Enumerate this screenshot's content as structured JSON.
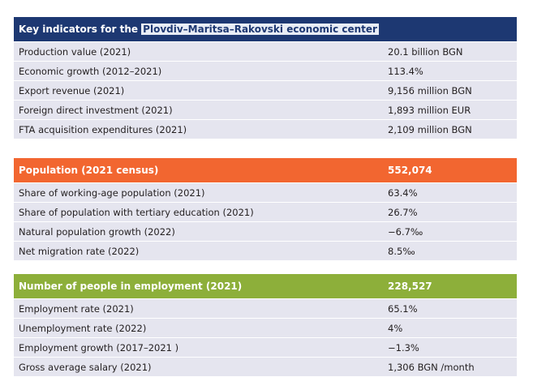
{
  "sections": [
    {
      "header": {
        "label_prefix": "Key indicators for the ",
        "label_highlight": "Plovdiv–Maritsa–Rakovski economic center",
        "value": ""
      },
      "rows": [
        {
          "label": "Production value (2021)",
          "value": "20.1 billion BGN"
        },
        {
          "label": "Economic growth (2012–2021)",
          "value": "113.4%"
        },
        {
          "label": "Export revenue (2021)",
          "value": "9,156 million BGN"
        },
        {
          "label": "Foreign direct investment (2021)",
          "value": "1,893 million EUR"
        },
        {
          "label": "FTA acquisition expenditures (2021)",
          "value": "2,109 million BGN"
        }
      ]
    },
    {
      "header": {
        "label": "Population (2021 census)",
        "value": "552,074"
      },
      "rows": [
        {
          "label": "Share of working-age population (2021)",
          "value": "63.4%"
        },
        {
          "label": "Share of population with tertiary education (2021)",
          "value": "26.7%"
        },
        {
          "label": "Natural population growth (2022)",
          "value": "−6.7‰"
        },
        {
          "label": "Net migration rate (2022)",
          "value": "8.5‰"
        }
      ]
    },
    {
      "header": {
        "label": "Number of people in employment (2021)",
        "value": "228,527"
      },
      "rows": [
        {
          "label": "Employment rate (2021)",
          "value": "65.1%"
        },
        {
          "label": "Unemployment rate (2022)",
          "value": "4%"
        },
        {
          "label": "Employment growth (2017–2021 )",
          "value": "−1.3%"
        },
        {
          "label": "Gross average salary (2021)",
          "value": "1,306 BGN /month"
        }
      ]
    }
  ],
  "colors": {
    "header_navy": "#1d3872",
    "header_orange": "#f26630",
    "header_green": "#8daf3a",
    "row_background": "#e5e5ef"
  }
}
